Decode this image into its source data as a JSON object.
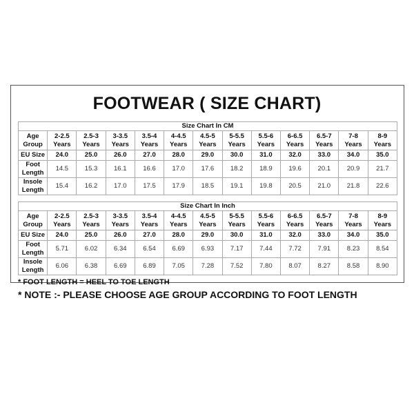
{
  "title": "FOOTWEAR ( SIZE CHART)",
  "labels": {
    "age_group": "Age Group",
    "eu_size": "EU Size",
    "foot_length": "Foot Length",
    "insole_length": "Insole Length"
  },
  "age_groups": [
    [
      "2-2.5",
      "Years"
    ],
    [
      "2.5-3",
      "Years"
    ],
    [
      "3-3.5",
      "Years"
    ],
    [
      "3.5-4",
      "Years"
    ],
    [
      "4-4.5",
      "Years"
    ],
    [
      "4.5-5",
      "Years"
    ],
    [
      "5-5.5",
      "Years"
    ],
    [
      "5.5-6",
      "Years"
    ],
    [
      "6-6.5",
      "Years"
    ],
    [
      "6.5-7",
      "Years"
    ],
    [
      "7-8",
      "Years"
    ],
    [
      "8-9",
      "Years"
    ]
  ],
  "eu_sizes": [
    "24.0",
    "25.0",
    "26.0",
    "27.0",
    "28.0",
    "29.0",
    "30.0",
    "31.0",
    "32.0",
    "33.0",
    "34.0",
    "35.0"
  ],
  "tables": [
    {
      "caption": "Size Chart In CM",
      "foot_length": [
        "14.5",
        "15.3",
        "16.1",
        "16.6",
        "17.0",
        "17.6",
        "18.2",
        "18.9",
        "19.6",
        "20.1",
        "20.9",
        "21.7"
      ],
      "insole_length": [
        "15.4",
        "16.2",
        "17.0",
        "17.5",
        "17.9",
        "18.5",
        "19.1",
        "19.8",
        "20.5",
        "21.0",
        "21.8",
        "22.6"
      ]
    },
    {
      "caption": "Size Chart In Inch",
      "foot_length": [
        "5.71",
        "6.02",
        "6.34",
        "6.54",
        "6.69",
        "6.93",
        "7.17",
        "7.44",
        "7.72",
        "7.91",
        "8.23",
        "8.54"
      ],
      "insole_length": [
        "6.06",
        "6.38",
        "6.69",
        "6.89",
        "7.05",
        "7.28",
        "7.52",
        "7.80",
        "8.07",
        "8.27",
        "8.58",
        "8.90"
      ]
    }
  ],
  "footnote": "* FOOT LENGTH = HEEL TO TOE LENGTH",
  "note": "* NOTE :- PLEASE CHOOSE AGE GROUP ACCORDING TO FOOT LENGTH"
}
